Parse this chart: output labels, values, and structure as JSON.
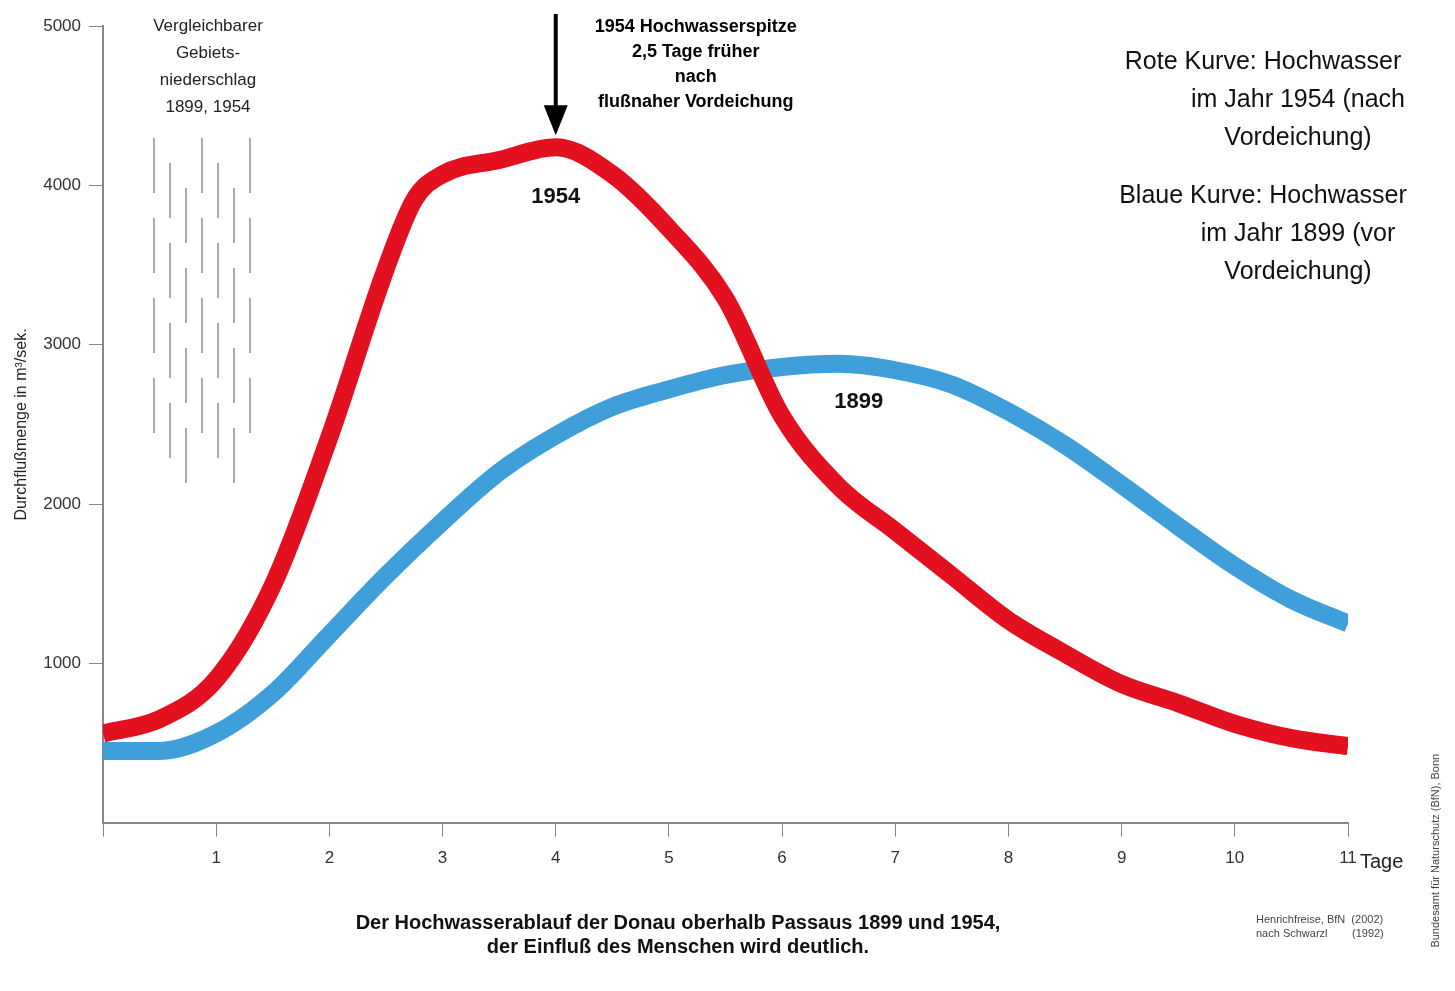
{
  "chart_data": {
    "type": "line",
    "title": "Der Hochwasserablauf der Donau oberhalb Passaus 1899 und 1954,\nder Einfluß des Menschen wird deutlich.",
    "xlabel": "Tage",
    "ylabel": "Durchflußmenge in m³/sek.",
    "x": [
      0,
      0.5,
      1,
      1.5,
      2,
      2.5,
      2.75,
      3,
      3.5,
      4,
      4.5,
      5,
      5.5,
      6,
      6.5,
      7,
      7.5,
      8,
      8.5,
      9,
      9.5,
      10,
      10.5,
      11
    ],
    "series": [
      {
        "name": "1954",
        "color": "#e3101f",
        "values": [
          560,
          650,
          900,
          1490,
          2420,
          3480,
          3910,
          4070,
          4160,
          4240,
          4070,
          3730,
          3290,
          2550,
          2110,
          1830,
          1550,
          1270,
          1060,
          870,
          750,
          620,
          530,
          480
        ]
      },
      {
        "name": "1899",
        "color": "#3f9fdb",
        "x": [
          0,
          0.5,
          1,
          1.5,
          2,
          2.5,
          3,
          3.5,
          4,
          4.5,
          5,
          5.5,
          6,
          6.5,
          7,
          7.5,
          8,
          8.5,
          9,
          9.5,
          10,
          10.5,
          11
        ],
        "values": [
          450,
          450,
          560,
          810,
          1180,
          1550,
          1890,
          2200,
          2430,
          2610,
          2720,
          2810,
          2860,
          2880,
          2840,
          2750,
          2580,
          2370,
          2120,
          1860,
          1610,
          1400,
          1250
        ]
      }
    ],
    "xlim": [
      0,
      11
    ],
    "xticks": [
      {
        "value": 0,
        "label": null
      },
      1,
      2,
      3,
      4,
      5,
      6,
      7,
      8,
      9,
      10,
      11
    ],
    "ylim": [
      0,
      5000
    ],
    "yticks": [
      1000,
      2000,
      3000,
      4000,
      5000
    ],
    "grid": false,
    "legend": false,
    "marker": "none",
    "line_style": "solid",
    "annotations": [
      "Vergleichbarer\nGebiets-\nniederschlag\n1899, 1954",
      {
        "text": "1954 Hochwasserspitze\n2,5 Tage früher\nnach\nflußnaher Vordeichung",
        "x": 4,
        "y": 4240
      },
      "Rote Kurve: Hochwasser\nim Jahr 1954 (nach\nVordeichung)",
      "Blaue Kurve: Hochwasser\nim Jahr 1899 (vor\nVordeichung)",
      "Henrichfreise, BfN  (2002)\nnach Schwarzl        (1992)",
      "Bundesamt für Naturschutz (BfN), Bonn"
    ]
  }
}
